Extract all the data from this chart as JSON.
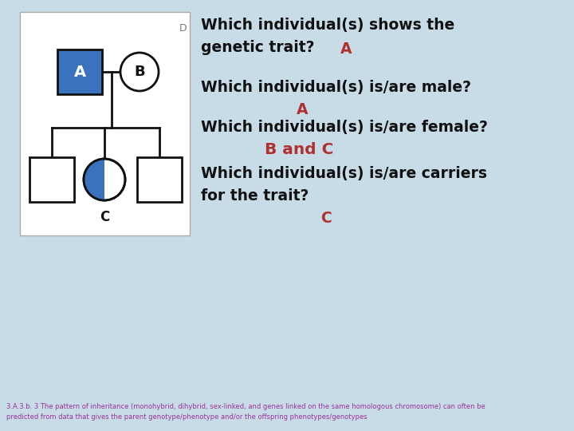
{
  "bg_color": "#c8dce8",
  "title_q1a": "Which individual(s) shows the",
  "title_q1b": "genetic trait?",
  "ans_q1": "A",
  "title_q2": "Which individual(s) is/are male?",
  "ans_q2": "A",
  "title_q3": "Which individual(s) is/are female?",
  "ans_q3": "B and C",
  "title_q4a": "Which individual(s) is/are carriers",
  "title_q4b": "for the trait?",
  "ans_q4": "C",
  "footnote1": "3.A.3.b. 3 The pattern of inheritance (monohybrid, dihybrid, sex-linked, and genes linked on the same homologous chromosome) can often be",
  "footnote2": "predicted from data that gives the parent genotype/phenotype and/or the offspring phenotypes/genotypes",
  "question_color": "#111111",
  "answer_color": "#b03030",
  "footnote_color": "#993399",
  "blue_fill": "#3b72be",
  "black": "#111111",
  "white": "#ffffff"
}
